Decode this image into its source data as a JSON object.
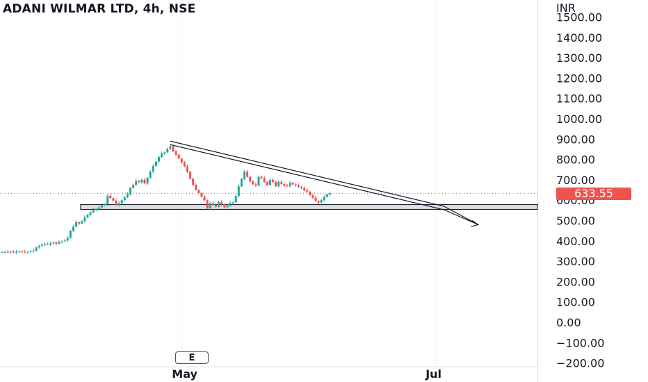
{
  "header": {
    "symbol_title": "ADANI WILMAR LTD, 4h, NSE",
    "currency": "INR"
  },
  "last_price_label": "633.55",
  "event_marker": "E",
  "colors": {
    "up": "#26a69a",
    "down": "#ef5350",
    "drawing": "#131722",
    "grid": "#f0f3fa",
    "last_price_line": "#ef5350"
  },
  "chart_data": {
    "type": "candlestick",
    "title": "ADANI WILMAR LTD, 4h, NSE",
    "ylabel": "INR",
    "ylim": [
      -200,
      1500
    ],
    "y_ticks": [
      "1500.00",
      "1400.00",
      "1300.00",
      "1200.00",
      "1100.00",
      "1000.00",
      "900.00",
      "800.00",
      "700.00",
      "600.00",
      "500.00",
      "400.00",
      "300.00",
      "200.00",
      "100.00",
      "0.00",
      "−100.00",
      "−200.00"
    ],
    "y_tick_values": [
      1500,
      1400,
      1300,
      1200,
      1100,
      1000,
      900,
      800,
      700,
      600,
      500,
      400,
      300,
      200,
      100,
      0,
      -100,
      -200
    ],
    "x_ticks": [
      {
        "label": "May",
        "bar": 63
      },
      {
        "label": "Jul",
        "bar": 152
      }
    ],
    "last_price": 633.55,
    "closes": [
      345,
      346,
      344,
      347,
      343,
      345,
      348,
      346,
      344,
      346,
      349,
      352,
      368,
      375,
      380,
      386,
      382,
      388,
      392,
      386,
      394,
      398,
      402,
      415,
      450,
      470,
      492,
      485,
      496,
      515,
      528,
      540,
      552,
      558,
      564,
      575,
      580,
      622,
      610,
      598,
      575,
      585,
      600,
      614,
      630,
      660,
      675,
      695,
      688,
      700,
      682,
      710,
      740,
      768,
      790,
      812,
      830,
      835,
      852,
      865,
      840,
      823,
      805,
      786,
      765,
      740,
      705,
      675,
      650,
      635,
      617,
      600,
      560,
      585,
      575,
      568,
      590,
      580,
      565,
      572,
      585,
      590,
      620,
      668,
      705,
      740,
      715,
      692,
      678,
      672,
      715,
      708,
      690,
      675,
      700,
      690,
      668,
      690,
      680,
      672,
      668,
      685,
      677,
      672,
      665,
      660,
      648,
      642,
      625,
      612,
      596,
      588,
      600,
      616,
      628,
      633.55
    ],
    "support_zone": {
      "low": 555,
      "high": 578
    },
    "trendline": {
      "from": {
        "bar": 59,
        "price": 890
      },
      "to": {
        "bar": 155,
        "price": 570
      }
    },
    "arrow_segment": {
      "from": {
        "bar": 155,
        "price": 570
      },
      "to": {
        "bar": 167,
        "price": 480
      }
    }
  }
}
